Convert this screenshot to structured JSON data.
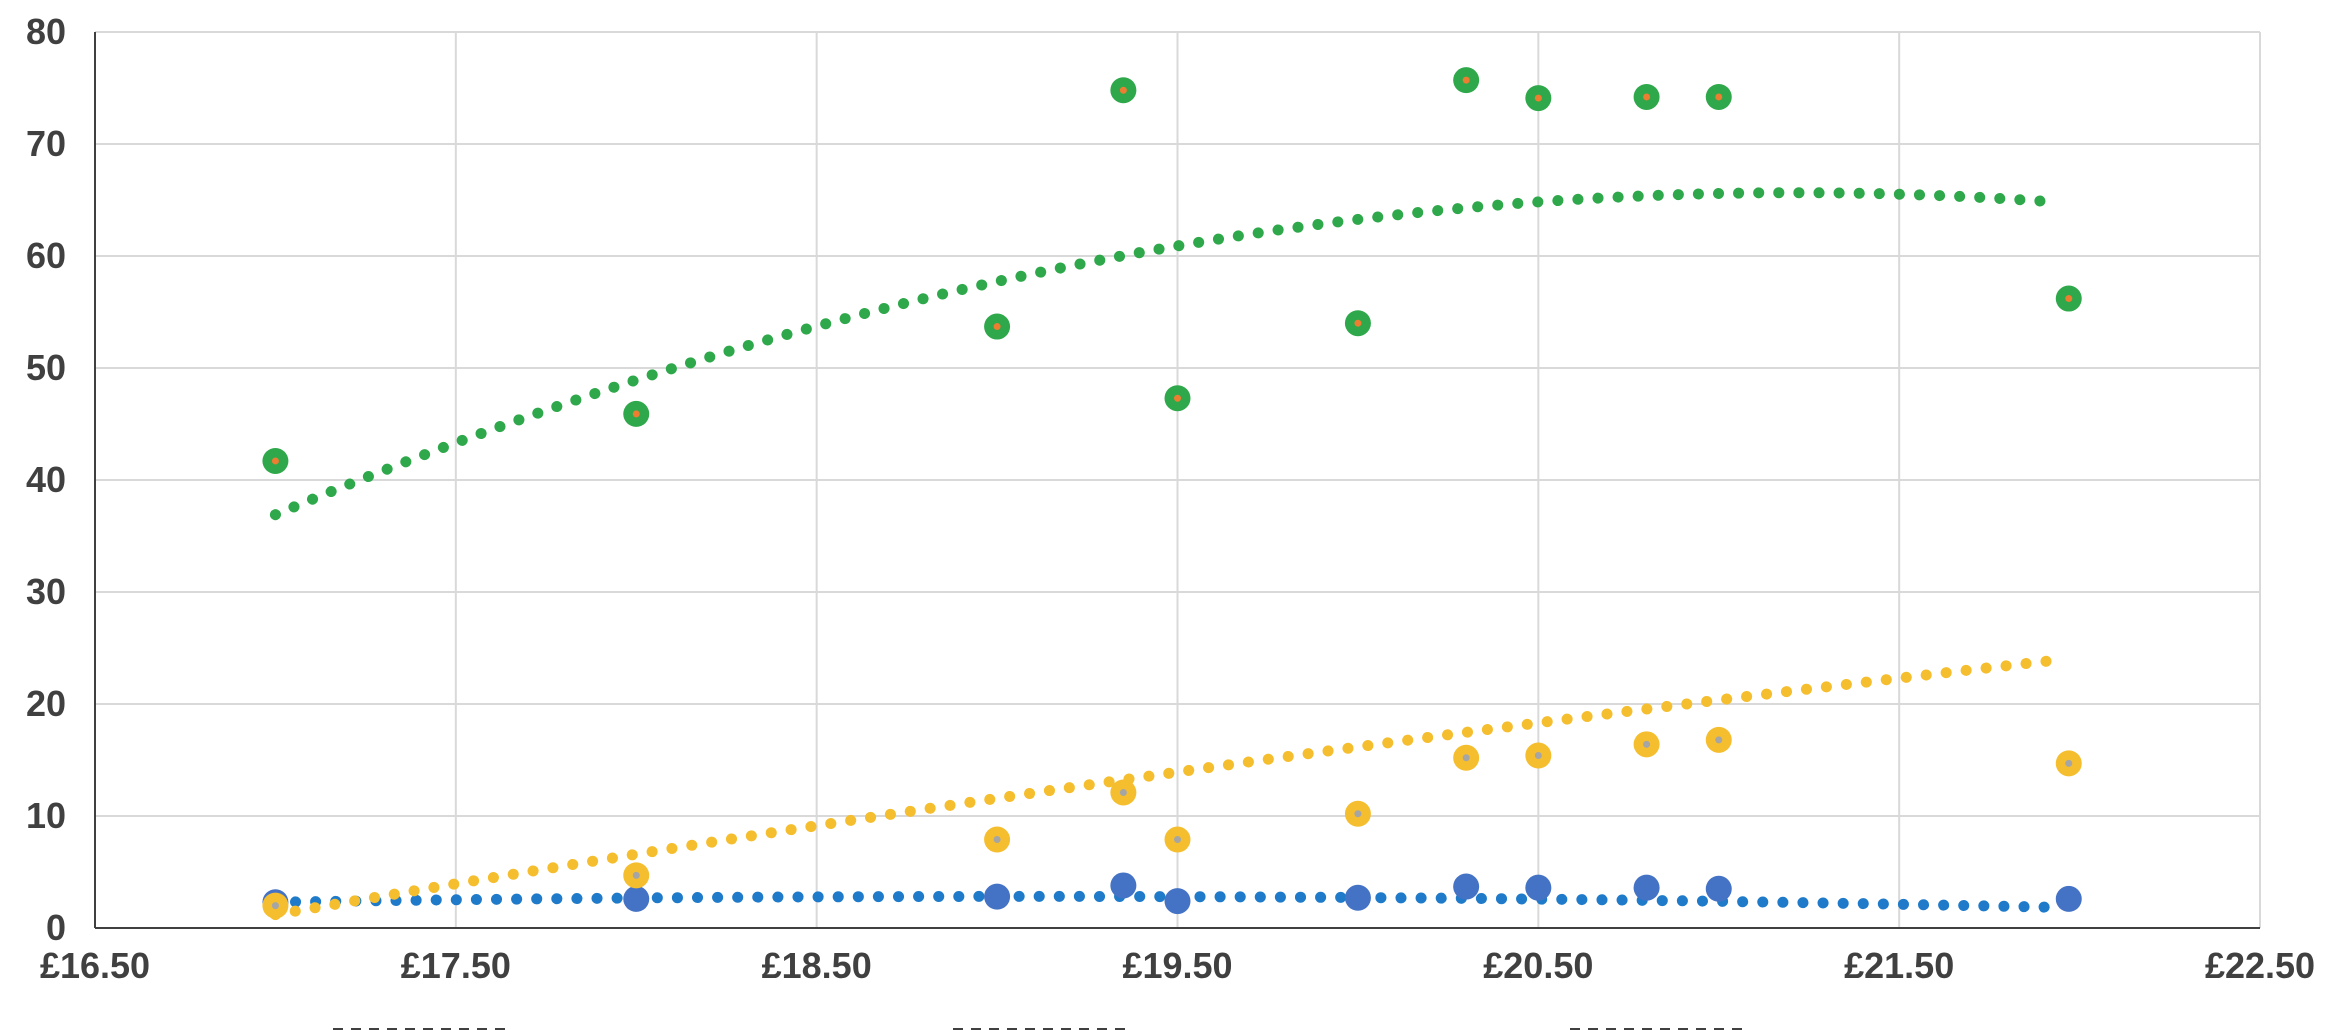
{
  "chart_data": {
    "type": "scatter",
    "x_axis": {
      "min": 16.5,
      "max": 22.5,
      "step": 1,
      "tick_labels": [
        "£16.50",
        "£17.50",
        "£18.50",
        "£19.50",
        "£20.50",
        "£21.50",
        "£22.50"
      ]
    },
    "y_axis": {
      "min": 0,
      "max": 80,
      "step": 10,
      "tick_labels": [
        "0",
        "10",
        "20",
        "30",
        "40",
        "50",
        "60",
        "70",
        "80"
      ]
    },
    "grid": true,
    "legend_position": "bottom",
    "series": [
      {
        "color": "#4472C4",
        "trendline_color": "#1F7BC9",
        "marker_center": "#4472C4",
        "points": [
          {
            "x": 17.0,
            "y": 2.3
          },
          {
            "x": 18.0,
            "y": 2.6
          },
          {
            "x": 19.0,
            "y": 2.8
          },
          {
            "x": 19.35,
            "y": 3.8
          },
          {
            "x": 19.5,
            "y": 2.4
          },
          {
            "x": 20.0,
            "y": 2.7
          },
          {
            "x": 20.3,
            "y": 3.7
          },
          {
            "x": 20.5,
            "y": 3.6
          },
          {
            "x": 20.8,
            "y": 3.6
          },
          {
            "x": 21.0,
            "y": 3.5
          },
          {
            "x": 21.97,
            "y": 2.6
          }
        ],
        "trend": [
          0,
          0.0,
          0,
          2.3,
          0.5,
          -0.12
        ]
      },
      {
        "color": "#2EA84A",
        "trendline_color": "#2EA84A",
        "marker_center": "#ED7D31",
        "points": [
          {
            "x": 17.0,
            "y": 41.7
          },
          {
            "x": 18.0,
            "y": 45.9
          },
          {
            "x": 19.0,
            "y": 53.7
          },
          {
            "x": 19.35,
            "y": 74.8
          },
          {
            "x": 19.5,
            "y": 47.3
          },
          {
            "x": 20.0,
            "y": 54.0
          },
          {
            "x": 20.3,
            "y": 75.7
          },
          {
            "x": 20.5,
            "y": 74.1
          },
          {
            "x": 20.8,
            "y": 74.2
          },
          {
            "x": 21.0,
            "y": 74.2
          },
          {
            "x": 21.97,
            "y": 56.2
          }
        ],
        "trend": [
          36.9,
          13.65,
          -1.62
        ]
      },
      {
        "color": "#F5BE2E",
        "trendline_color": "#F5BE2E",
        "marker_center": "#A5A5A5",
        "points": [
          {
            "x": 17.0,
            "y": 2.0
          },
          {
            "x": 18.0,
            "y": 4.7
          },
          {
            "x": 19.0,
            "y": 7.9
          },
          {
            "x": 19.35,
            "y": 12.1
          },
          {
            "x": 19.5,
            "y": 7.9
          },
          {
            "x": 20.0,
            "y": 10.2
          },
          {
            "x": 20.3,
            "y": 15.2
          },
          {
            "x": 20.5,
            "y": 15.4
          },
          {
            "x": 20.8,
            "y": 16.4
          },
          {
            "x": 21.0,
            "y": 16.8
          },
          {
            "x": 21.97,
            "y": 14.7
          }
        ],
        "trend": [
          1.2,
          5.59,
          -0.2
        ]
      }
    ]
  }
}
